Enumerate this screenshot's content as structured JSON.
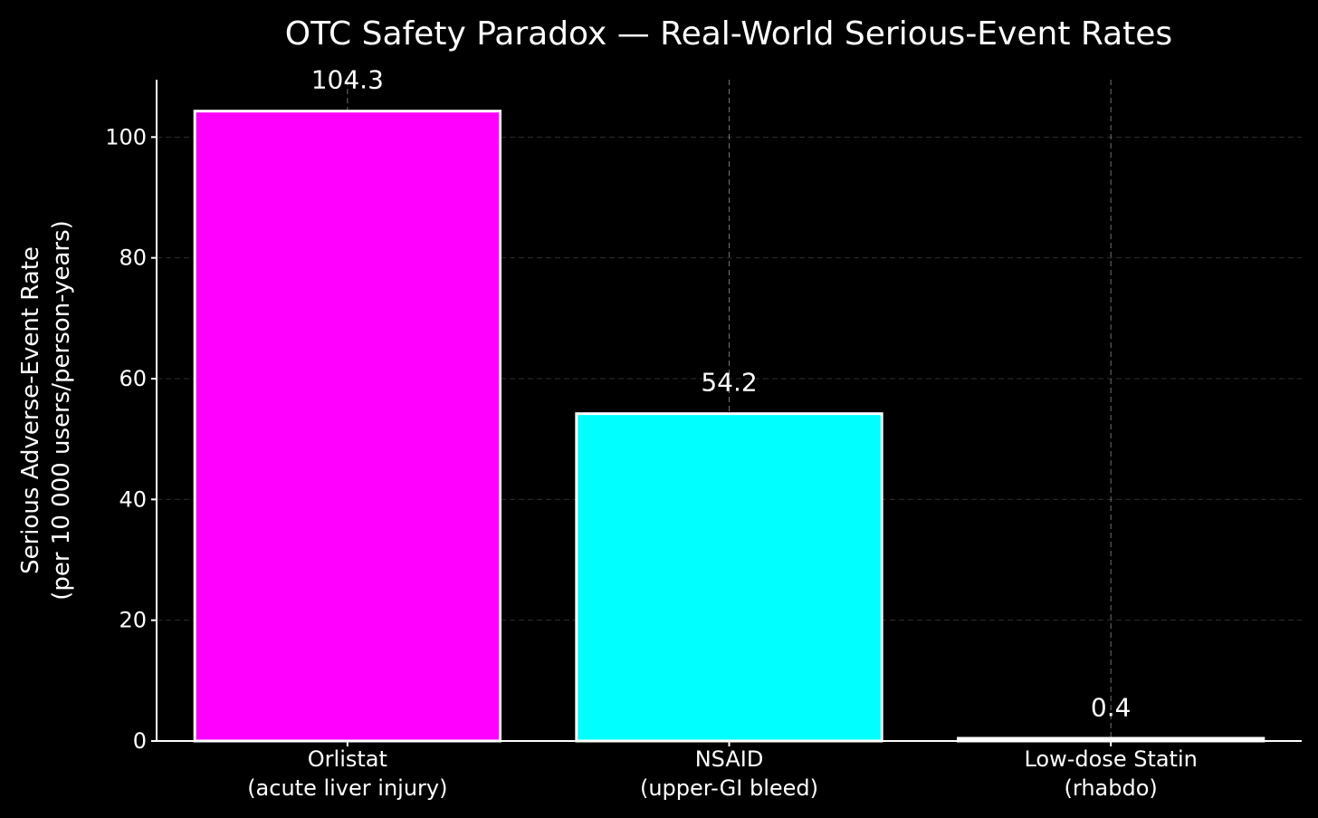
{
  "chart_data": {
    "type": "bar",
    "title": "OTC Safety Paradox — Real-World Serious-Event Rates",
    "ylabel_lines": [
      "Serious Adverse-Event Rate",
      "(per 10 000 users/person-years)"
    ],
    "xlabel": "",
    "categories": [
      {
        "lines": [
          "Orlistat",
          "(acute liver injury)"
        ]
      },
      {
        "lines": [
          "NSAID",
          "(upper-GI bleed)"
        ]
      },
      {
        "lines": [
          "Low-dose Statin",
          "(rhabdo)"
        ]
      }
    ],
    "values": [
      104.3,
      54.2,
      0.4
    ],
    "value_labels": [
      "104.3",
      "54.2",
      "0.4"
    ],
    "colors": [
      "#ff00ff",
      "#00ffff",
      "#ffffff"
    ],
    "bar_edge_color": "#ffffff",
    "ylim": [
      0,
      109.5
    ],
    "yticks": [
      0,
      20,
      40,
      60,
      80,
      100
    ],
    "grid": true,
    "background": "#000000"
  }
}
